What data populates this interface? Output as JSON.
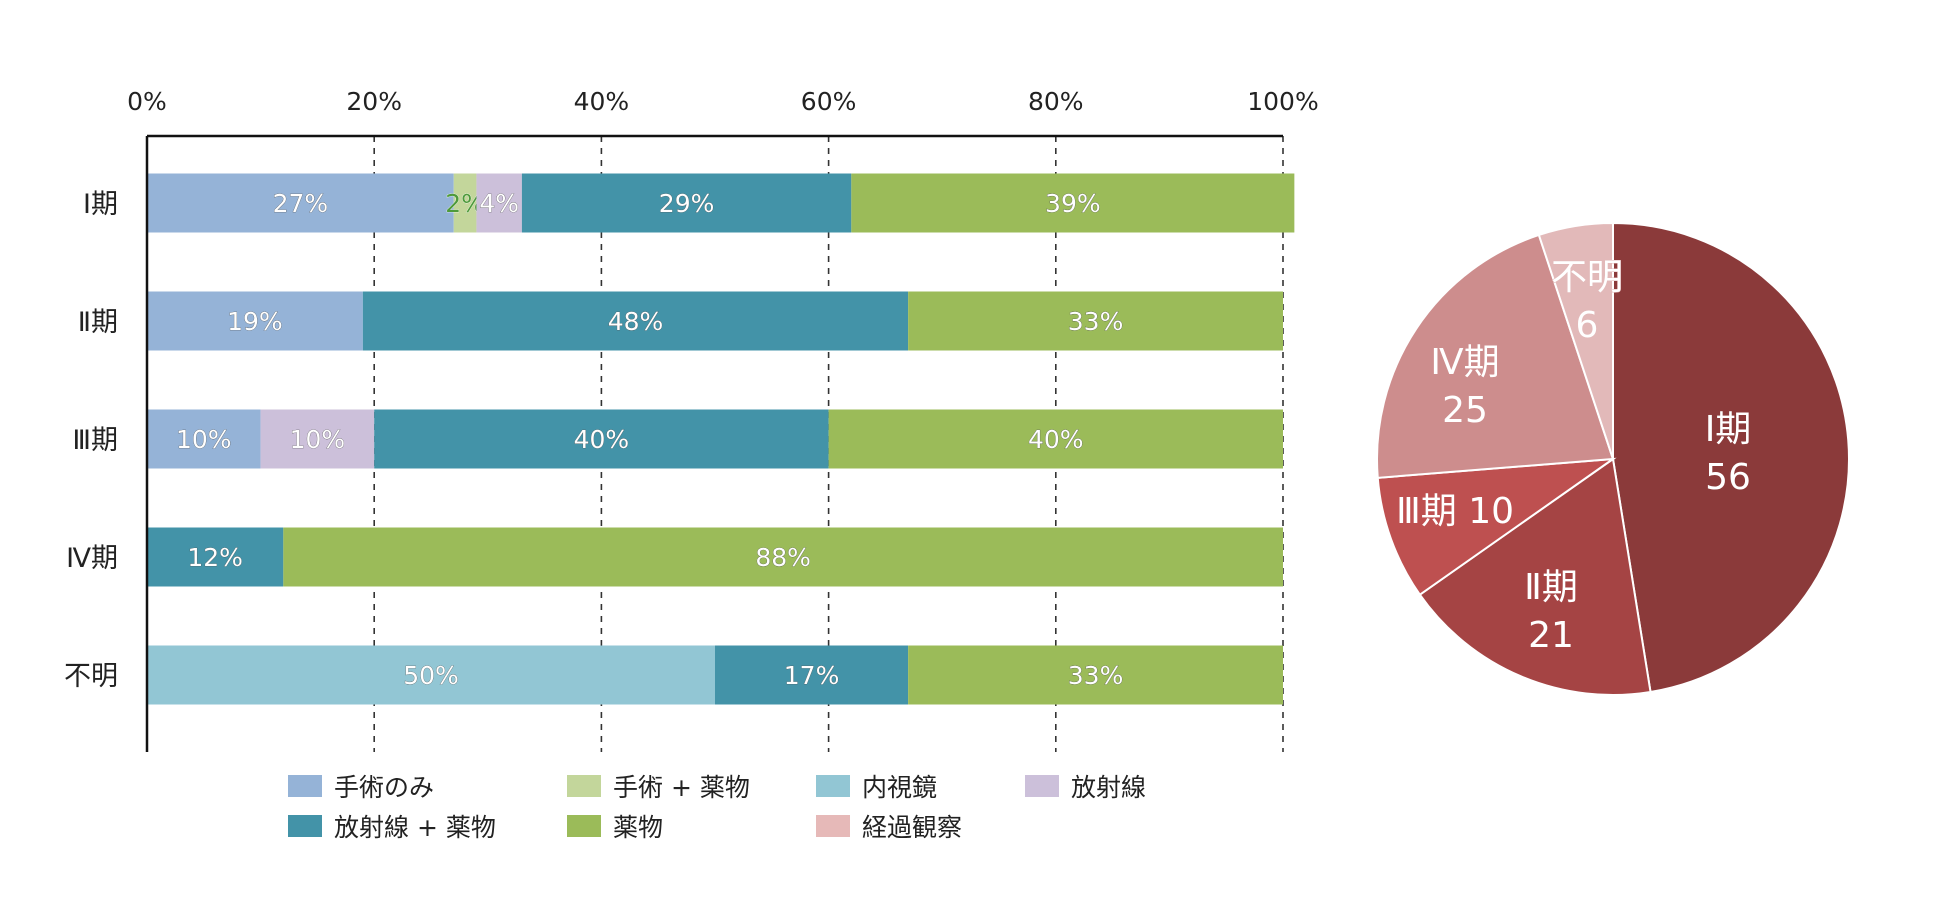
{
  "chart_data": [
    {
      "type": "bar",
      "orientation": "horizontal",
      "stacked": true,
      "normalized": true,
      "categories": [
        "Ⅰ期",
        "Ⅱ期",
        "Ⅲ期",
        "Ⅳ期",
        "不明"
      ],
      "x_ticks": [
        "0%",
        "20%",
        "40%",
        "60%",
        "80%",
        "100%"
      ],
      "xlim": [
        0,
        100
      ],
      "x_axis_position": "top",
      "grid": "vertical dashed",
      "legend_position": "bottom",
      "series": [
        {
          "name": "手術のみ",
          "color": "#95B3D7",
          "label_color": "#ffffff",
          "values": [
            27,
            19,
            10,
            0,
            0
          ],
          "labels": [
            "27%",
            "19%",
            "10%",
            "",
            ""
          ]
        },
        {
          "name": "手術 + 薬物",
          "color": "#C3D69B",
          "label_color": "#4E9A3A",
          "values": [
            2,
            0,
            0,
            0,
            0
          ],
          "labels": [
            "2%",
            "",
            "",
            "",
            ""
          ]
        },
        {
          "name": "内視鏡",
          "color": "#92C6D4",
          "label_color": "#ffffff",
          "values": [
            0,
            0,
            0,
            0,
            50
          ],
          "labels": [
            "",
            "",
            "",
            "",
            "50%"
          ]
        },
        {
          "name": "放射線",
          "color": "#CCC0DA",
          "label_color": "#ffffff",
          "values": [
            4,
            0,
            10,
            0,
            0
          ],
          "labels": [
            "4%",
            "",
            "10%",
            "",
            ""
          ]
        },
        {
          "name": "放射線 + 薬物",
          "color": "#4393A8",
          "label_color": "#ffffff",
          "values": [
            29,
            48,
            40,
            12,
            17
          ],
          "labels": [
            "29%",
            "48%",
            "40%",
            "12%",
            "17%"
          ]
        },
        {
          "name": "薬物",
          "color": "#9BBB59",
          "label_color": "#ffffff",
          "values": [
            39,
            33,
            40,
            88,
            33
          ],
          "labels": [
            "39%",
            "33%",
            "40%",
            "88%",
            "33%"
          ]
        },
        {
          "name": "経過観察",
          "color": "#E6B9B8",
          "label_color": "#ffffff",
          "values": [
            0,
            0,
            0,
            0,
            0
          ],
          "labels": [
            "",
            "",
            "",
            "",
            ""
          ]
        }
      ]
    },
    {
      "type": "pie",
      "start": "12 o'clock",
      "direction": "clockwise",
      "slices": [
        {
          "label": "Ⅰ期",
          "value": 56,
          "color": "#8B3A3A",
          "text": [
            "Ⅰ期",
            "56"
          ]
        },
        {
          "label": "Ⅱ期",
          "value": 21,
          "color": "#A54444",
          "text": [
            "Ⅱ期",
            "21"
          ]
        },
        {
          "label": "Ⅲ期",
          "value": 10,
          "color": "#BE5050",
          "text": [
            "Ⅲ期 10"
          ]
        },
        {
          "label": "Ⅳ期",
          "value": 25,
          "color": "#CD8D8D",
          "text": [
            "Ⅳ期",
            "25"
          ]
        },
        {
          "label": "不明",
          "value": 6,
          "color": "#E2B9B9",
          "text": [
            "不明",
            "6"
          ]
        }
      ]
    }
  ]
}
